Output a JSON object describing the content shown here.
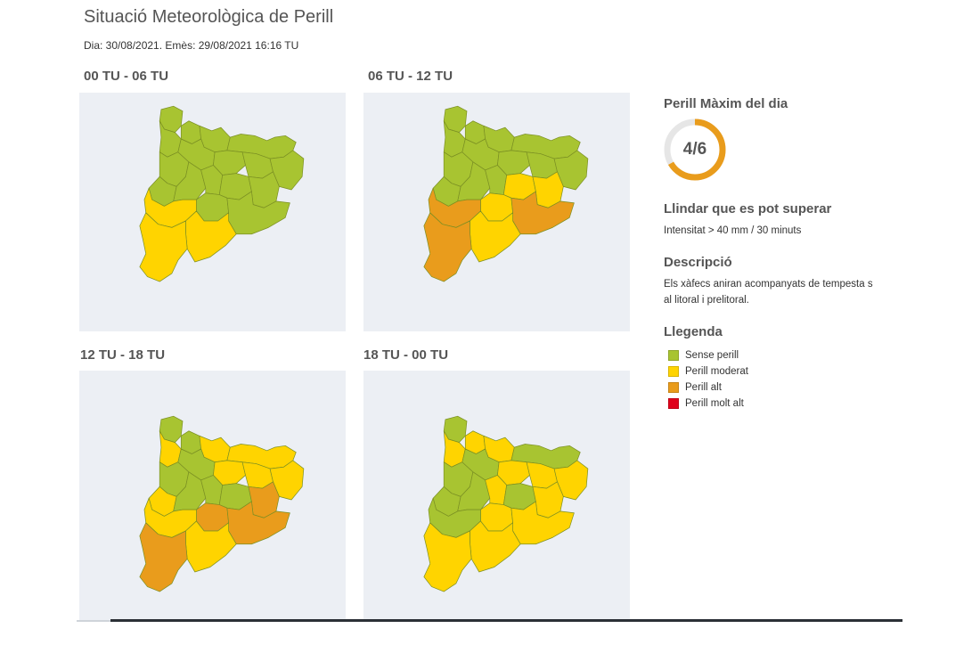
{
  "header": {
    "title": "Situació Meteorològica de Perill",
    "subtitle": "Dia: 30/08/2021. Emès: 29/08/2021 16:16 TU"
  },
  "colors": {
    "sense": "#a8c431",
    "moderat": "#ffd400",
    "alt": "#e99c1c",
    "molt_alt": "#e0001b",
    "map_background": "#eceff4",
    "region_border": "#7a8f23"
  },
  "panels": [
    {
      "label": "00 TU - 06 TU",
      "levels": [
        "sense",
        "sense",
        "sense",
        "sense",
        "sense",
        "sense",
        "sense",
        "sense",
        "sense",
        "sense",
        "sense",
        "sense",
        "sense",
        "sense",
        "sense",
        "sense",
        "sense",
        "moderat",
        "moderat",
        "moderat"
      ]
    },
    {
      "label": "06 TU - 12 TU",
      "levels": [
        "sense",
        "sense",
        "sense",
        "sense",
        "sense",
        "sense",
        "sense",
        "sense",
        "sense",
        "sense",
        "sense",
        "sense",
        "sense",
        "moderat",
        "moderat",
        "moderat",
        "alt",
        "alt",
        "moderat",
        "alt"
      ]
    },
    {
      "label": "12 TU - 18 TU",
      "levels": [
        "sense",
        "sense",
        "moderat",
        "moderat",
        "moderat",
        "sense",
        "sense",
        "moderat",
        "moderat",
        "moderat",
        "moderat",
        "sense",
        "sense",
        "sense",
        "alt",
        "alt",
        "alt",
        "moderat",
        "moderat",
        "alt"
      ]
    },
    {
      "label": "18 TU - 00 TU",
      "levels": [
        "sense",
        "moderat",
        "moderat",
        "moderat",
        "sense",
        "sense",
        "sense",
        "moderat",
        "moderat",
        "moderat",
        "sense",
        "sense",
        "moderat",
        "sense",
        "moderat",
        "moderat",
        "moderat",
        "sense",
        "moderat",
        "moderat"
      ]
    }
  ],
  "summary": {
    "max_heading": "Perill Màxim del dia",
    "max_value": "4/6",
    "max_level": 4,
    "max_scale": 6,
    "threshold_heading": "Llindar que es pot superar",
    "threshold_text": "Intensitat > 40 mm / 30 minuts",
    "description_heading": "Descripció",
    "description_line1": "Els xàfecs aniran acompanyats de tempesta s",
    "description_line2": "al litoral i prelitoral.",
    "legend_heading": "Llegenda"
  },
  "legend": [
    {
      "label": "Sense perill",
      "color": "#a8c431"
    },
    {
      "label": "Perill moderat",
      "color": "#ffd400"
    },
    {
      "label": "Perill alt",
      "color": "#e99c1c"
    },
    {
      "label": "Perill molt alt",
      "color": "#e0001b"
    }
  ]
}
